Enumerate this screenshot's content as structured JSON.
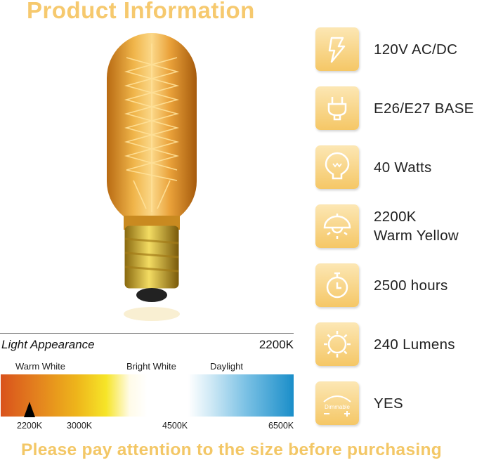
{
  "title": "Product Information",
  "specs": [
    {
      "icon": "lightning-icon",
      "label": "120V AC/DC"
    },
    {
      "icon": "plug-icon",
      "label": "E26/E27 BASE"
    },
    {
      "icon": "bulb-icon",
      "label": "40 Watts"
    },
    {
      "icon": "lamp-icon",
      "label": "2200K",
      "label2": "Warm Yellow"
    },
    {
      "icon": "stopwatch-icon",
      "label": "2500 hours"
    },
    {
      "icon": "sun-icon",
      "label": "240 Lumens"
    },
    {
      "icon": "dimmable-icon",
      "label": "YES",
      "icon_text": "Dimmable"
    }
  ],
  "light_appearance": {
    "heading": "Light Appearance",
    "value": "2200K",
    "zones": [
      "Warm White",
      "Bright White",
      "Daylight"
    ],
    "ticks": [
      "2200K",
      "3000K",
      "4500K",
      "6500K"
    ],
    "marker_value_k": 2200
  },
  "footer": "Please pay attention to the size before purchasing",
  "colors": {
    "accent": "#f6c96e",
    "icon_top": "#fce7b4",
    "icon_bottom": "#f5c766"
  }
}
